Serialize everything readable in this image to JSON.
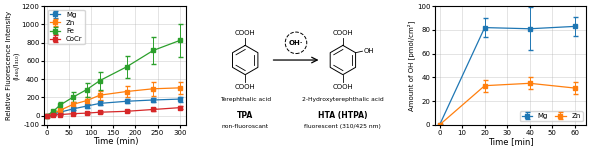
{
  "chart_data": [
    {
      "type": "line",
      "xlabel": "Time (min)",
      "ylabel": "Relative Fluorescence Intensity\n(I₄₆₀/I₃₁₀)",
      "xlim": [
        -5,
        315
      ],
      "ylim": [
        -100,
        1200
      ],
      "xticks": [
        0,
        50,
        100,
        150,
        200,
        250,
        300
      ],
      "yticks": [
        -100,
        0,
        200,
        400,
        600,
        800,
        1000,
        1200
      ],
      "grid": true,
      "legend": "upper left",
      "marker": "square",
      "line_style": "solid",
      "x": [
        0,
        15,
        30,
        60,
        90,
        120,
        180,
        240,
        300
      ],
      "series": [
        {
          "name": "Mg",
          "values": [
            0,
            18,
            38,
            75,
            105,
            135,
            158,
            172,
            182
          ],
          "yerr": [
            4,
            8,
            12,
            18,
            18,
            22,
            22,
            22,
            28
          ]
        },
        {
          "name": "Zn",
          "values": [
            0,
            28,
            58,
            125,
            165,
            225,
            265,
            295,
            305
          ],
          "yerr": [
            4,
            12,
            18,
            28,
            38,
            48,
            58,
            78,
            68
          ]
        },
        {
          "name": "Fe",
          "values": [
            0,
            48,
            115,
            205,
            285,
            385,
            535,
            715,
            825
          ],
          "yerr": [
            4,
            18,
            38,
            58,
            78,
            98,
            118,
            148,
            178
          ]
        },
        {
          "name": "CoCr",
          "values": [
            0,
            8,
            12,
            22,
            28,
            38,
            48,
            68,
            88
          ],
          "yerr": [
            2,
            4,
            6,
            8,
            8,
            10,
            12,
            15,
            18
          ]
        }
      ]
    },
    {
      "type": "diagram",
      "reagent": "OH·",
      "molecules": [
        {
          "name": "Terephthalic acid",
          "label": "TPA",
          "note": "non-fluoroscant",
          "top": "COOH",
          "bottom": "COOH"
        },
        {
          "name": "2-Hydroxyterephthalic acid",
          "label": "HTA (HTPA)",
          "note": "fluorescent (310/425 nm)",
          "top": "COOH",
          "bottom": "COOH",
          "side": "OH"
        }
      ]
    },
    {
      "type": "line",
      "xlabel": "Time [min]",
      "ylabel": "Amount of OH [pmol/cm²]",
      "xlim": [
        -2,
        65
      ],
      "ylim": [
        0,
        100
      ],
      "xticks": [
        0,
        10,
        20,
        30,
        40,
        50,
        60
      ],
      "yticks": [
        0,
        20,
        40,
        60,
        80,
        100
      ],
      "grid": true,
      "legend": "lower right",
      "marker": "square",
      "line_style": "solid",
      "x": [
        0,
        20,
        40,
        60
      ],
      "series": [
        {
          "name": "Mg",
          "values": [
            0,
            82,
            81,
            83
          ],
          "yerr": [
            0,
            8,
            18,
            8
          ]
        },
        {
          "name": "Zn",
          "values": [
            0,
            33,
            35,
            31
          ],
          "yerr": [
            0,
            5,
            5,
            5
          ]
        }
      ]
    }
  ]
}
